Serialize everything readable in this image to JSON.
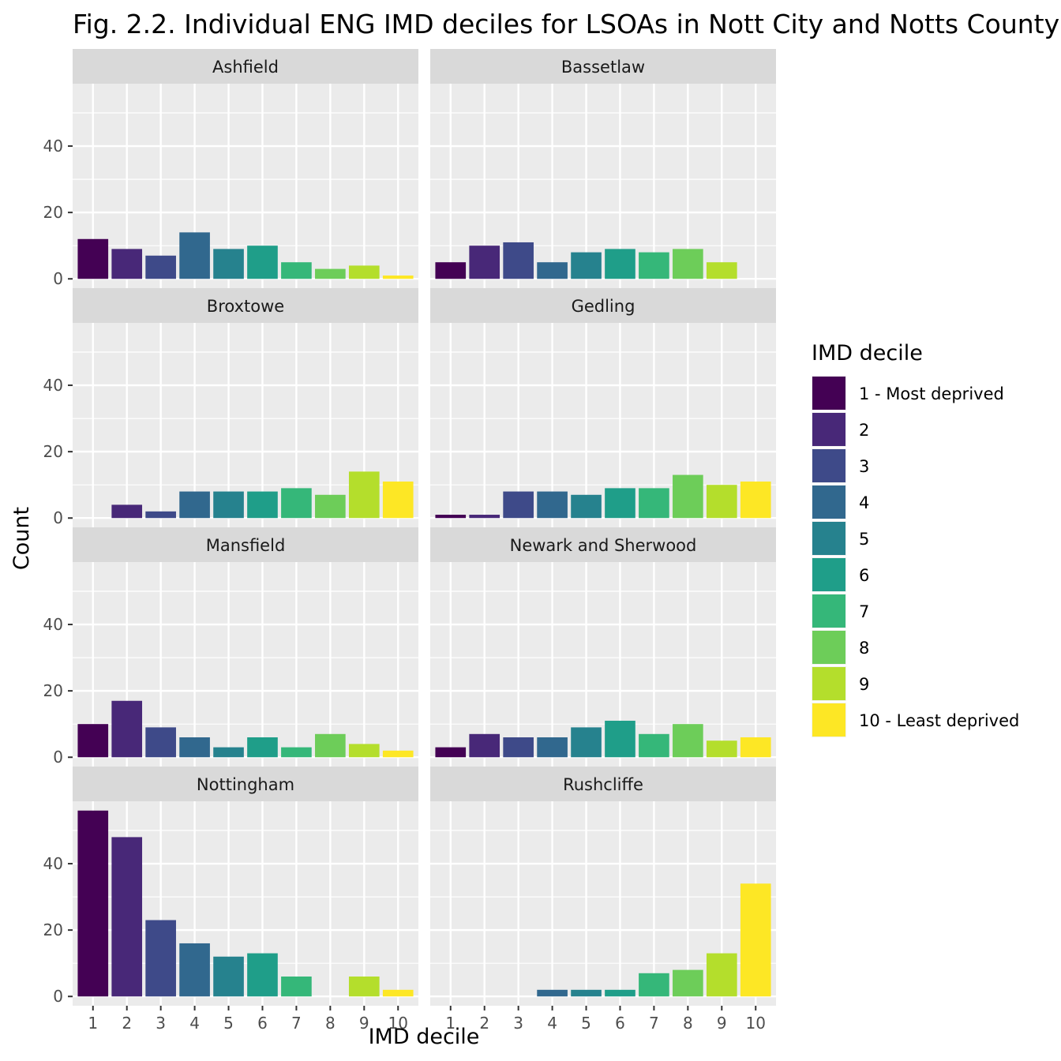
{
  "chart_data": {
    "type": "bar",
    "title": "Fig. 2.2. Individual ENG IMD deciles for LSOAs in Nott City and Notts County",
    "xlabel": "IMD decile",
    "ylabel": "Count",
    "x_ticks": [
      "1",
      "2",
      "3",
      "4",
      "5",
      "6",
      "7",
      "8",
      "9",
      "10"
    ],
    "y_ticks": [
      "0",
      "20",
      "40"
    ],
    "y_range": [
      0,
      56
    ],
    "grid": true,
    "legend": {
      "title": "IMD decile",
      "position": "right",
      "entries": [
        {
          "label": "1 - Most deprived",
          "color": "#440154"
        },
        {
          "label": "2",
          "color": "#482878"
        },
        {
          "label": "3",
          "color": "#3E4A89"
        },
        {
          "label": "4",
          "color": "#31688E"
        },
        {
          "label": "5",
          "color": "#26828E"
        },
        {
          "label": "6",
          "color": "#1F9E89"
        },
        {
          "label": "7",
          "color": "#35B779"
        },
        {
          "label": "8",
          "color": "#6DCD59"
        },
        {
          "label": "9",
          "color": "#B4DE2C"
        },
        {
          "label": "10 - Least deprived",
          "color": "#FDE725"
        }
      ]
    },
    "panels": [
      {
        "name": "Ashfield",
        "values": [
          12,
          9,
          7,
          14,
          9,
          10,
          5,
          3,
          4,
          1
        ]
      },
      {
        "name": "Bassetlaw",
        "values": [
          5,
          10,
          11,
          5,
          8,
          9,
          8,
          9,
          5,
          0
        ]
      },
      {
        "name": "Broxtowe",
        "values": [
          0,
          4,
          2,
          8,
          8,
          8,
          9,
          7,
          14,
          11
        ]
      },
      {
        "name": "Gedling",
        "values": [
          1,
          1,
          8,
          8,
          7,
          9,
          9,
          13,
          10,
          11
        ]
      },
      {
        "name": "Mansfield",
        "values": [
          10,
          17,
          9,
          6,
          3,
          6,
          3,
          7,
          4,
          2
        ]
      },
      {
        "name": "Newark and Sherwood",
        "values": [
          3,
          7,
          6,
          6,
          9,
          11,
          7,
          10,
          5,
          6
        ]
      },
      {
        "name": "Nottingham",
        "values": [
          56,
          48,
          23,
          16,
          12,
          13,
          6,
          0,
          6,
          2
        ]
      },
      {
        "name": "Rushcliffe",
        "values": [
          0,
          0,
          0,
          2,
          2,
          2,
          7,
          8,
          13,
          34
        ]
      }
    ]
  }
}
